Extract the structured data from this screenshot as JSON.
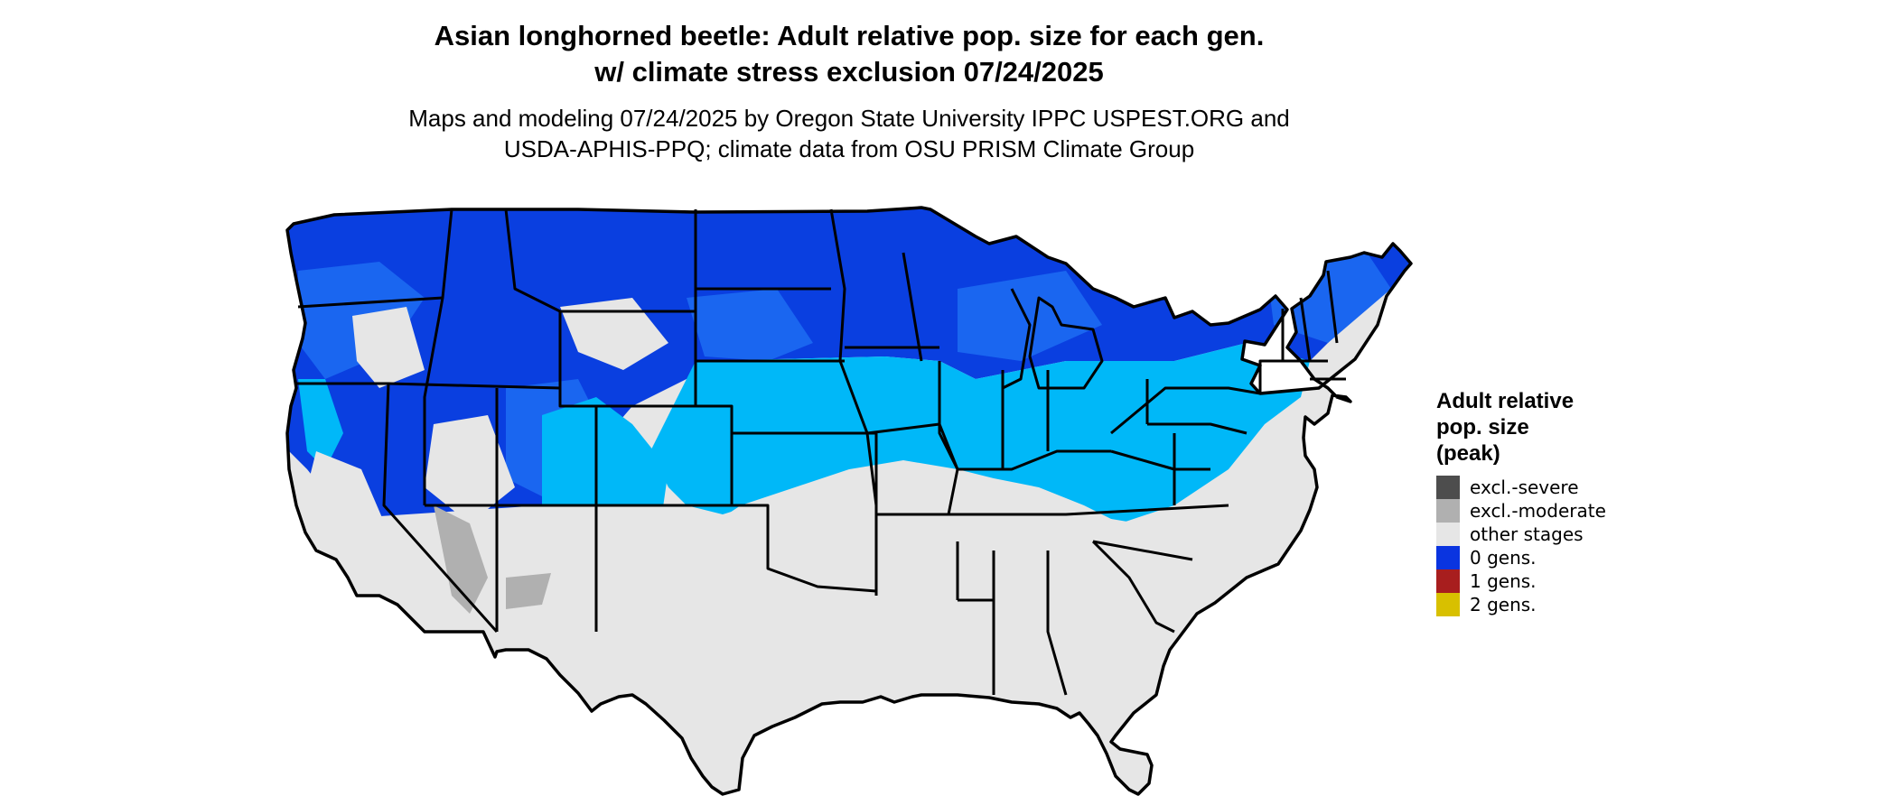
{
  "title": {
    "line1": "Asian longhorned beetle: Adult relative pop. size for each gen.",
    "line2": "w/ climate stress exclusion 07/24/2025"
  },
  "subtitle": {
    "line1": "Maps and modeling 07/24/2025 by Oregon State University IPPC USPEST.ORG and",
    "line2": "USDA-APHIS-PPQ; climate data from OSU PRISM Climate Group"
  },
  "legend": {
    "title_lines": [
      "Adult relative",
      "pop. size",
      "(peak)"
    ],
    "items": [
      {
        "label": "excl.-severe",
        "color": "#4d4d4d"
      },
      {
        "label": "excl.-moderate",
        "color": "#b0b0b0"
      },
      {
        "label": "other stages",
        "color": "#e6e6e6"
      },
      {
        "label": "0 gens.",
        "color": "#0a34e0"
      },
      {
        "label": "1 gens.",
        "color": "#a81e1e"
      },
      {
        "label": "2 gens.",
        "color": "#d8c000"
      }
    ]
  },
  "map": {
    "colors": {
      "dark_blue": "#0a3fe0",
      "mid_blue": "#1a66f0",
      "light_blue": "#00b8f8",
      "other_stages": "#e6e6e6",
      "excl_moderate": "#b0b0b0",
      "borders": "#000000"
    }
  }
}
